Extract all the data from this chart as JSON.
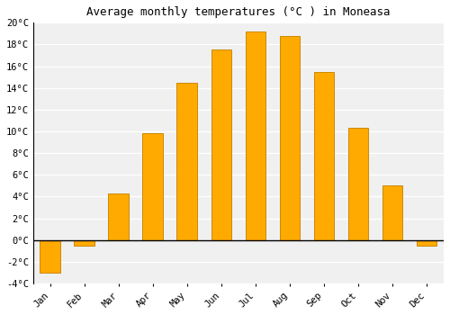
{
  "months": [
    "Jan",
    "Feb",
    "Mar",
    "Apr",
    "May",
    "Jun",
    "Jul",
    "Aug",
    "Sep",
    "Oct",
    "Nov",
    "Dec"
  ],
  "values": [
    -3.0,
    -0.5,
    4.3,
    9.8,
    14.5,
    17.5,
    19.2,
    18.8,
    15.5,
    10.3,
    5.0,
    -0.5
  ],
  "bar_color": "#FFAA00",
  "bar_edge_color": "#CC8800",
  "title": "Average monthly temperatures (°C ) in Moneasa",
  "ylim": [
    -4,
    20
  ],
  "yticks": [
    -4,
    -2,
    0,
    2,
    4,
    6,
    8,
    10,
    12,
    14,
    16,
    18,
    20
  ],
  "background_color": "#ffffff",
  "plot_bg_color": "#f0f0f0",
  "grid_color": "#ffffff",
  "title_fontsize": 9,
  "tick_fontsize": 7.5
}
